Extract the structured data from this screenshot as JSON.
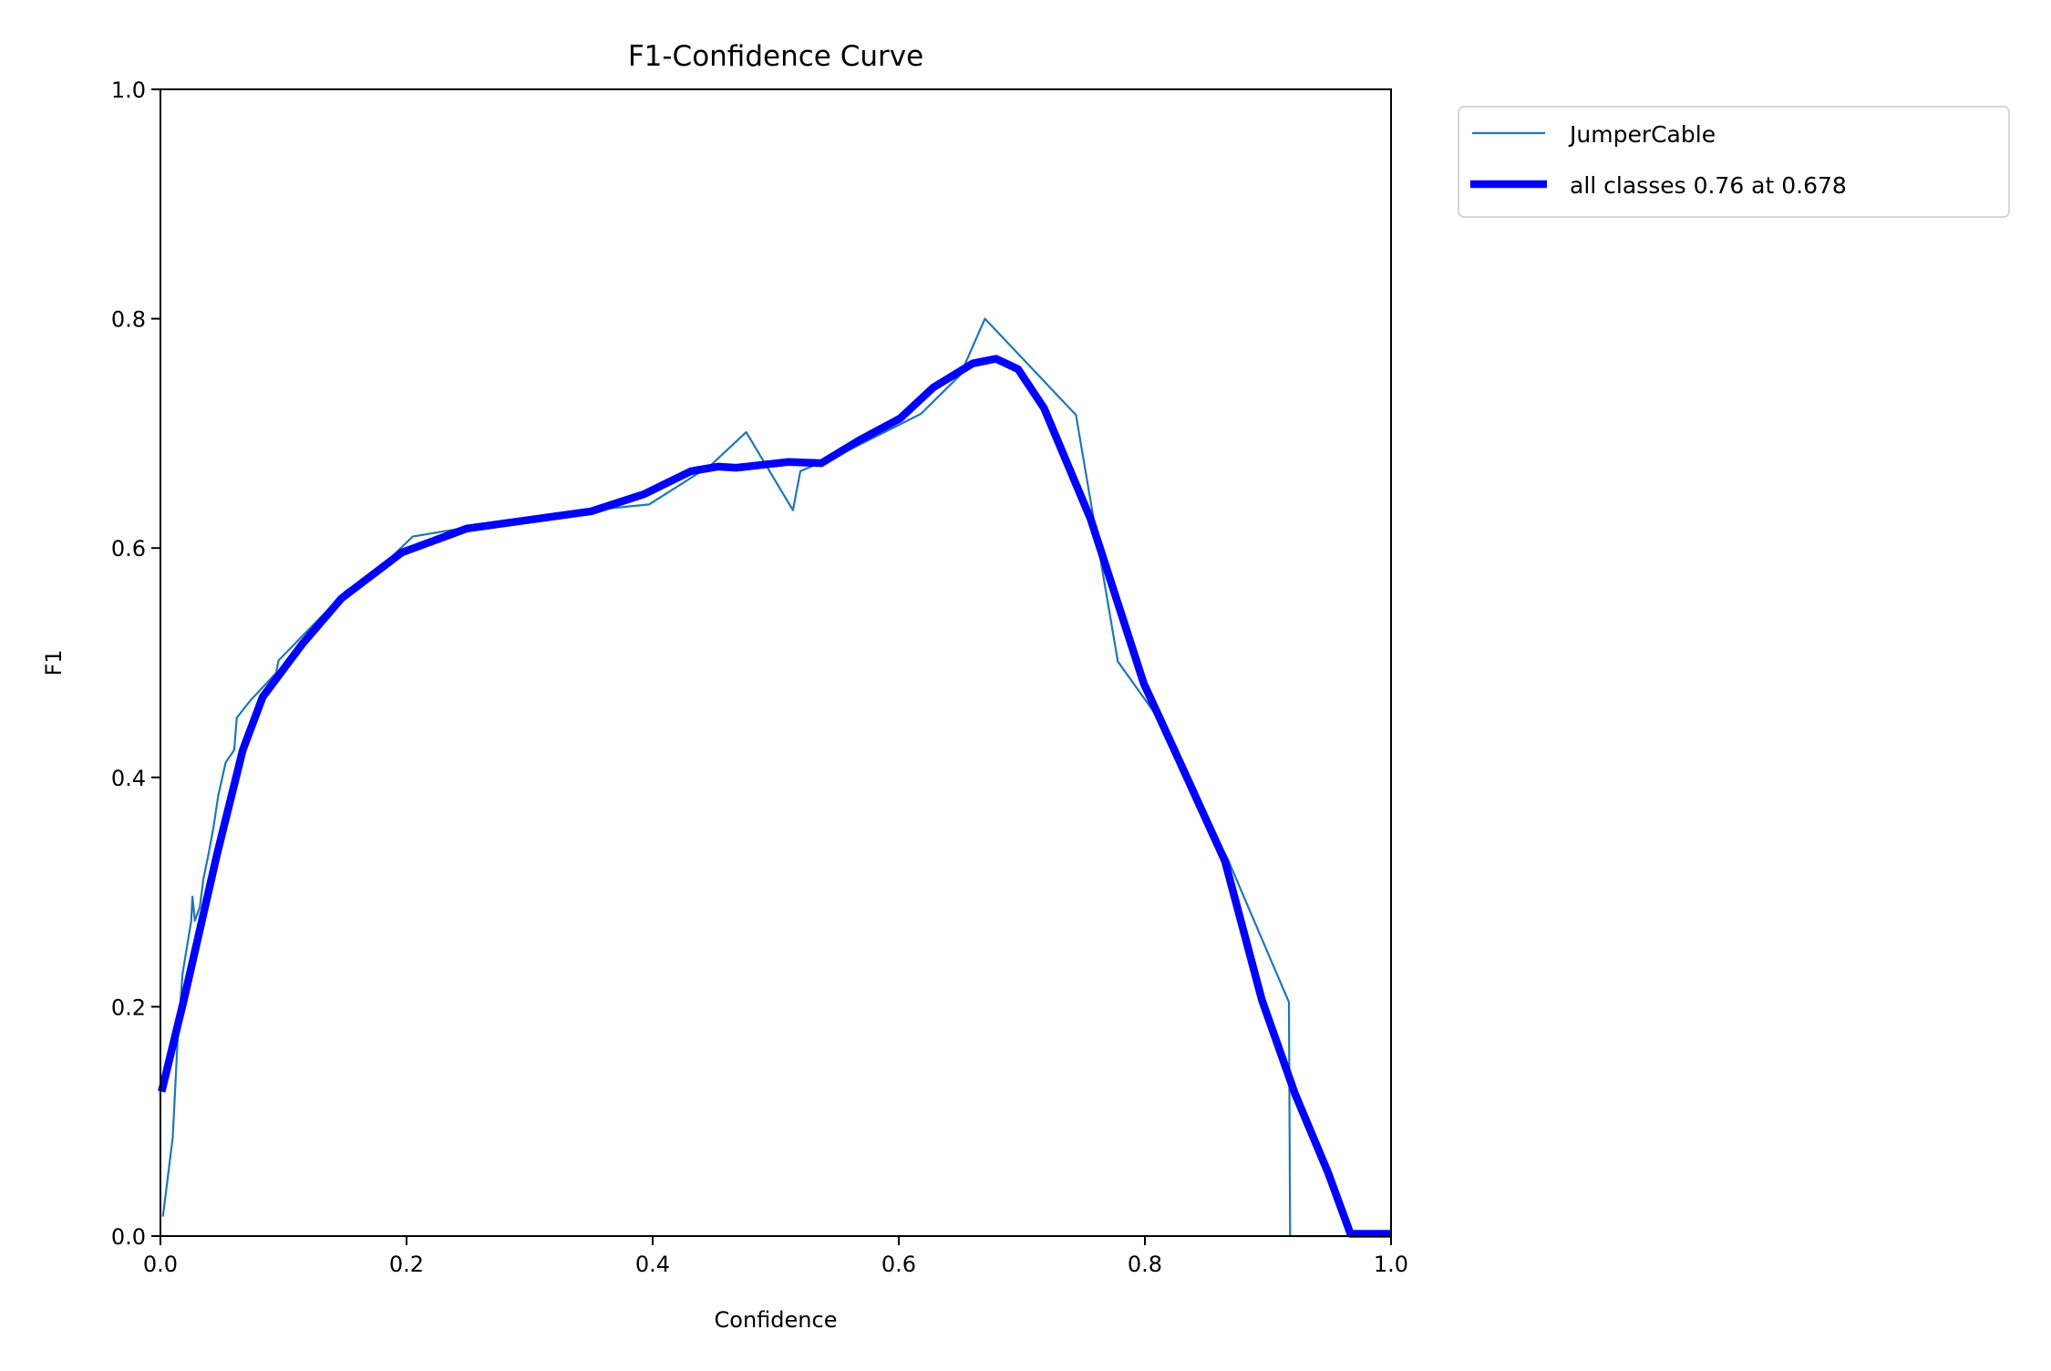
{
  "chart_data": {
    "type": "line",
    "title": "F1-Confidence Curve",
    "xlabel": "Confidence",
    "ylabel": "F1",
    "xlim": [
      0,
      1
    ],
    "ylim": [
      0,
      1
    ],
    "xticks": [
      "0.0",
      "0.2",
      "0.4",
      "0.6",
      "0.8",
      "1.0"
    ],
    "yticks": [
      "0.0",
      "0.2",
      "0.4",
      "0.6",
      "0.8",
      "1.0"
    ],
    "grid": false,
    "legend_placement": "outside-top-right",
    "series": [
      {
        "name": "JumperCable",
        "color": "#1f77b4",
        "points": [
          [
            0.002,
            0.017
          ],
          [
            0.01,
            0.086
          ],
          [
            0.014,
            0.172
          ],
          [
            0.018,
            0.229
          ],
          [
            0.025,
            0.275
          ],
          [
            0.026,
            0.296
          ],
          [
            0.028,
            0.275
          ],
          [
            0.032,
            0.287
          ],
          [
            0.035,
            0.312
          ],
          [
            0.039,
            0.333
          ],
          [
            0.043,
            0.356
          ],
          [
            0.047,
            0.384
          ],
          [
            0.053,
            0.413
          ],
          [
            0.06,
            0.424
          ],
          [
            0.062,
            0.452
          ],
          [
            0.073,
            0.467
          ],
          [
            0.094,
            0.491
          ],
          [
            0.096,
            0.502
          ],
          [
            0.145,
            0.556
          ],
          [
            0.15,
            0.562
          ],
          [
            0.179,
            0.583
          ],
          [
            0.205,
            0.61
          ],
          [
            0.244,
            0.617
          ],
          [
            0.35,
            0.633
          ],
          [
            0.397,
            0.638
          ],
          [
            0.447,
            0.672
          ],
          [
            0.476,
            0.701
          ],
          [
            0.514,
            0.633
          ],
          [
            0.52,
            0.667
          ],
          [
            0.553,
            0.682
          ],
          [
            0.618,
            0.717
          ],
          [
            0.65,
            0.751
          ],
          [
            0.67,
            0.8
          ],
          [
            0.744,
            0.716
          ],
          [
            0.778,
            0.501
          ],
          [
            0.81,
            0.453
          ],
          [
            0.868,
            0.327
          ],
          [
            0.917,
            0.204
          ],
          [
            0.918,
            0.0
          ],
          [
            1.0,
            0.0
          ]
        ]
      },
      {
        "name": "all classes 0.76 at 0.678",
        "color": "#0000ff",
        "points": [
          [
            0.001,
            0.126
          ],
          [
            0.019,
            0.206
          ],
          [
            0.046,
            0.333
          ],
          [
            0.067,
            0.424
          ],
          [
            0.083,
            0.47
          ],
          [
            0.115,
            0.516
          ],
          [
            0.147,
            0.556
          ],
          [
            0.196,
            0.596
          ],
          [
            0.249,
            0.617
          ],
          [
            0.35,
            0.632
          ],
          [
            0.393,
            0.647
          ],
          [
            0.431,
            0.667
          ],
          [
            0.453,
            0.671
          ],
          [
            0.468,
            0.67
          ],
          [
            0.51,
            0.675
          ],
          [
            0.537,
            0.674
          ],
          [
            0.568,
            0.694
          ],
          [
            0.601,
            0.713
          ],
          [
            0.628,
            0.74
          ],
          [
            0.66,
            0.761
          ],
          [
            0.679,
            0.765
          ],
          [
            0.697,
            0.756
          ],
          [
            0.718,
            0.722
          ],
          [
            0.756,
            0.625
          ],
          [
            0.799,
            0.482
          ],
          [
            0.826,
            0.419
          ],
          [
            0.865,
            0.327
          ],
          [
            0.895,
            0.206
          ],
          [
            0.922,
            0.124
          ],
          [
            0.949,
            0.055
          ],
          [
            0.967,
            0.002
          ],
          [
            1.0,
            0.002
          ]
        ]
      }
    ]
  }
}
